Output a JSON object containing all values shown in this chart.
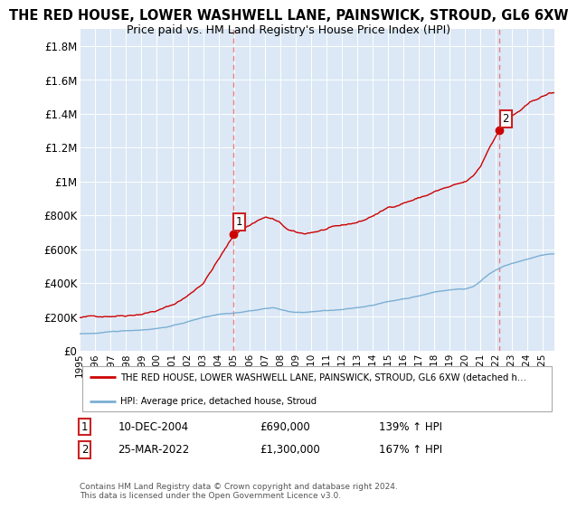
{
  "title": "THE RED HOUSE, LOWER WASHWELL LANE, PAINSWICK, STROUD, GL6 6XW",
  "subtitle": "Price paid vs. HM Land Registry's House Price Index (HPI)",
  "title_fontsize": 10.5,
  "subtitle_fontsize": 9,
  "ylim": [
    0,
    1900000
  ],
  "yticks": [
    0,
    200000,
    400000,
    600000,
    800000,
    1000000,
    1200000,
    1400000,
    1600000,
    1800000
  ],
  "ytick_labels": [
    "£0",
    "£200K",
    "£400K",
    "£600K",
    "£800K",
    "£1M",
    "£1.2M",
    "£1.4M",
    "£1.6M",
    "£1.8M"
  ],
  "sale1_date_num": 2004.94,
  "sale1_price": 690000,
  "sale1_label": "1",
  "sale1_text": "10-DEC-2004",
  "sale1_amount": "£690,000",
  "sale1_hpi": "139% ↑ HPI",
  "sale2_date_num": 2022.23,
  "sale2_price": 1300000,
  "sale2_label": "2",
  "sale2_text": "25-MAR-2022",
  "sale2_amount": "£1,300,000",
  "sale2_hpi": "167% ↑ HPI",
  "red_line_color": "#cc0000",
  "blue_line_color": "#7bafd4",
  "vline_color": "#e88080",
  "background_color": "#ffffff",
  "plot_bg_color": "#dce8f5",
  "grid_color": "#ffffff",
  "legend_label_red": "THE RED HOUSE, LOWER WASHWELL LANE, PAINSWICK, STROUD, GL6 6XW (detached h…",
  "legend_label_blue": "HPI: Average price, detached house, Stroud",
  "footnote": "Contains HM Land Registry data © Crown copyright and database right 2024.\nThis data is licensed under the Open Government Licence v3.0.",
  "xstart": 1995.0,
  "xend": 2025.8,
  "red_points": [
    [
      1995.0,
      195000
    ],
    [
      1996.0,
      200000
    ],
    [
      1997.0,
      210000
    ],
    [
      1998.0,
      220000
    ],
    [
      1999.0,
      235000
    ],
    [
      2000.0,
      255000
    ],
    [
      2001.0,
      285000
    ],
    [
      2002.0,
      340000
    ],
    [
      2003.0,
      420000
    ],
    [
      2004.0,
      560000
    ],
    [
      2004.94,
      690000
    ],
    [
      2005.5,
      740000
    ],
    [
      2006.0,
      760000
    ],
    [
      2006.5,
      790000
    ],
    [
      2007.0,
      810000
    ],
    [
      2007.5,
      800000
    ],
    [
      2008.0,
      770000
    ],
    [
      2008.5,
      730000
    ],
    [
      2009.0,
      710000
    ],
    [
      2009.5,
      700000
    ],
    [
      2010.0,
      710000
    ],
    [
      2010.5,
      720000
    ],
    [
      2011.0,
      730000
    ],
    [
      2011.5,
      735000
    ],
    [
      2012.0,
      740000
    ],
    [
      2012.5,
      750000
    ],
    [
      2013.0,
      760000
    ],
    [
      2013.5,
      775000
    ],
    [
      2014.0,
      800000
    ],
    [
      2014.5,
      820000
    ],
    [
      2015.0,
      845000
    ],
    [
      2015.5,
      860000
    ],
    [
      2016.0,
      880000
    ],
    [
      2016.5,
      895000
    ],
    [
      2017.0,
      910000
    ],
    [
      2017.5,
      925000
    ],
    [
      2018.0,
      945000
    ],
    [
      2018.5,
      960000
    ],
    [
      2019.0,
      970000
    ],
    [
      2019.5,
      980000
    ],
    [
      2020.0,
      990000
    ],
    [
      2020.5,
      1020000
    ],
    [
      2021.0,
      1080000
    ],
    [
      2021.5,
      1180000
    ],
    [
      2022.0,
      1270000
    ],
    [
      2022.23,
      1300000
    ],
    [
      2022.5,
      1340000
    ],
    [
      2023.0,
      1380000
    ],
    [
      2023.5,
      1410000
    ],
    [
      2024.0,
      1440000
    ],
    [
      2024.5,
      1470000
    ],
    [
      2025.0,
      1490000
    ],
    [
      2025.5,
      1510000
    ]
  ],
  "blue_points": [
    [
      1995.0,
      100000
    ],
    [
      1996.0,
      103000
    ],
    [
      1997.0,
      108000
    ],
    [
      1998.0,
      115000
    ],
    [
      1999.0,
      122000
    ],
    [
      2000.0,
      132000
    ],
    [
      2001.0,
      148000
    ],
    [
      2002.0,
      172000
    ],
    [
      2003.0,
      198000
    ],
    [
      2004.0,
      218000
    ],
    [
      2004.94,
      228000
    ],
    [
      2005.5,
      236000
    ],
    [
      2006.0,
      244000
    ],
    [
      2006.5,
      250000
    ],
    [
      2007.0,
      258000
    ],
    [
      2007.5,
      262000
    ],
    [
      2008.0,
      254000
    ],
    [
      2008.5,
      242000
    ],
    [
      2009.0,
      236000
    ],
    [
      2009.5,
      234000
    ],
    [
      2010.0,
      238000
    ],
    [
      2010.5,
      242000
    ],
    [
      2011.0,
      245000
    ],
    [
      2011.5,
      246000
    ],
    [
      2012.0,
      248000
    ],
    [
      2012.5,
      252000
    ],
    [
      2013.0,
      258000
    ],
    [
      2013.5,
      266000
    ],
    [
      2014.0,
      276000
    ],
    [
      2014.5,
      286000
    ],
    [
      2015.0,
      296000
    ],
    [
      2015.5,
      304000
    ],
    [
      2016.0,
      314000
    ],
    [
      2016.5,
      322000
    ],
    [
      2017.0,
      332000
    ],
    [
      2017.5,
      342000
    ],
    [
      2018.0,
      354000
    ],
    [
      2018.5,
      362000
    ],
    [
      2019.0,
      368000
    ],
    [
      2019.5,
      372000
    ],
    [
      2020.0,
      374000
    ],
    [
      2020.5,
      388000
    ],
    [
      2021.0,
      420000
    ],
    [
      2021.5,
      460000
    ],
    [
      2022.0,
      490000
    ],
    [
      2022.23,
      500000
    ],
    [
      2022.5,
      512000
    ],
    [
      2023.0,
      526000
    ],
    [
      2023.5,
      536000
    ],
    [
      2024.0,
      548000
    ],
    [
      2024.5,
      562000
    ],
    [
      2025.0,
      572000
    ],
    [
      2025.5,
      580000
    ]
  ]
}
